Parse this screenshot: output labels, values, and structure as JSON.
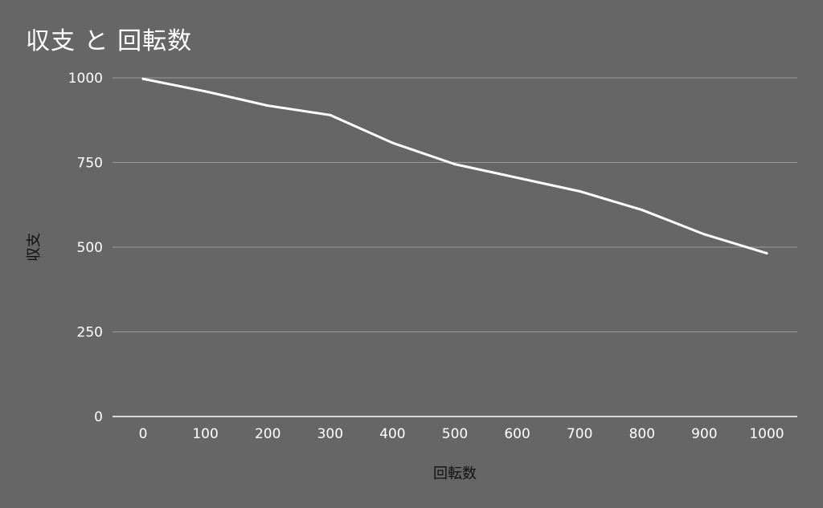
{
  "chart_data": {
    "type": "line",
    "title": "収支 と 回転数",
    "xlabel": "回転数",
    "ylabel": "収支",
    "x": [
      0,
      100,
      200,
      300,
      400,
      500,
      600,
      700,
      800,
      900,
      1000
    ],
    "xticks": [
      "0",
      "100",
      "200",
      "300",
      "400",
      "500",
      "600",
      "700",
      "800",
      "900",
      "1000"
    ],
    "yticks": [
      "0",
      "250",
      "500",
      "750",
      "1000"
    ],
    "ylim": [
      0,
      1000
    ],
    "grid": true,
    "series": [
      {
        "values": [
          997,
          960,
          918,
          890,
          808,
          745,
          705,
          665,
          610,
          538,
          482
        ]
      }
    ],
    "colors": {
      "background": "#666666",
      "line": "#ffffff",
      "grid": "#9a9a9a",
      "text": "#ffffff",
      "axis_title": "#111111"
    }
  }
}
